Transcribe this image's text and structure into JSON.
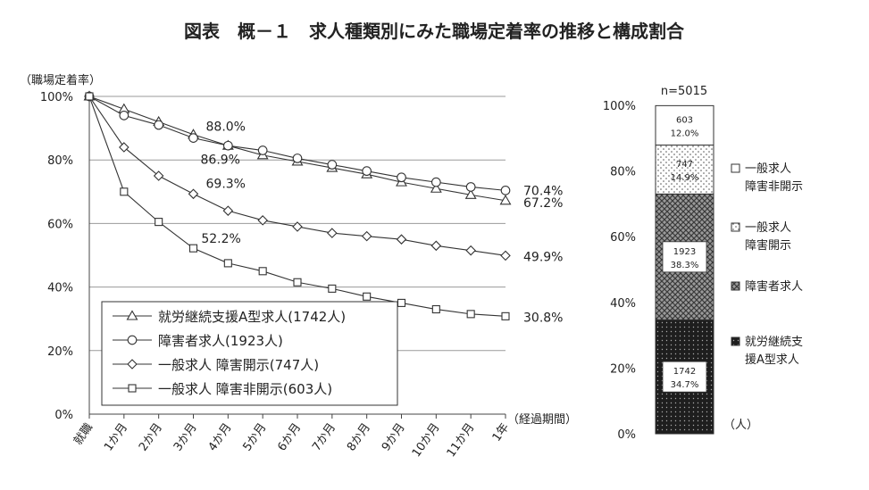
{
  "title": "図表　概－１　求人種類別にみた職場定着率の推移と構成割合",
  "chart_data": [
    {
      "type": "line",
      "ylabel": "（職場定着率）",
      "xlabel": "（経過期間）",
      "ylim": [
        0,
        100
      ],
      "yticks": [
        "0%",
        "20%",
        "40%",
        "60%",
        "80%",
        "100%"
      ],
      "categories": [
        "就職",
        "1か月",
        "2か月",
        "3か月",
        "4か月",
        "5か月",
        "6か月",
        "7か月",
        "8か月",
        "9か月",
        "10か月",
        "11か月",
        "1年"
      ],
      "grid": true,
      "legend_position": "bottom-left",
      "series": [
        {
          "name": "就労継続支援A型求人(1742人)",
          "marker": "triangle",
          "values": [
            100,
            96.0,
            92.0,
            88.0,
            84.5,
            81.5,
            79.5,
            77.5,
            75.5,
            73.0,
            71.0,
            69.0,
            67.2
          ]
        },
        {
          "name": "障害者求人(1923人)",
          "marker": "circle",
          "values": [
            100,
            94.0,
            91.0,
            86.9,
            84.5,
            83.0,
            80.5,
            78.5,
            76.5,
            74.5,
            73.0,
            71.5,
            70.4
          ]
        },
        {
          "name": "一般求人 障害開示(747人)",
          "marker": "diamond",
          "values": [
            100,
            84.0,
            75.0,
            69.3,
            64.0,
            61.0,
            59.0,
            57.0,
            56.0,
            55.0,
            53.0,
            51.5,
            49.9
          ]
        },
        {
          "name": "一般求人 障害非開示(603人)",
          "marker": "square",
          "values": [
            100,
            70.0,
            60.5,
            52.2,
            47.5,
            45.0,
            41.5,
            39.5,
            37.0,
            35.0,
            33.0,
            31.5,
            30.8
          ]
        }
      ],
      "annotations": [
        "88.0%",
        "86.9%",
        "69.3%",
        "52.2%",
        "70.4%",
        "67.2%",
        "49.9%",
        "30.8%"
      ]
    },
    {
      "type": "bar",
      "stacked": true,
      "title": "n=5015",
      "ylim": [
        0,
        100
      ],
      "yticks": [
        "0%",
        "20%",
        "40%",
        "60%",
        "80%",
        "100%"
      ],
      "unit_label": "（人）",
      "segments": [
        {
          "name": "就労継続支援A型求人",
          "count": "1742",
          "percent": "34.7%",
          "value": 34.7,
          "pattern": "dark-dots"
        },
        {
          "name": "障害者求人",
          "count": "1923",
          "percent": "38.3%",
          "value": 38.3,
          "pattern": "crosshatch"
        },
        {
          "name": "一般求人障害開示",
          "count": "747",
          "percent": "14.9%",
          "value": 14.9,
          "pattern": "light-dots"
        },
        {
          "name": "一般求人障害非開示",
          "count": "603",
          "percent": "12.0%",
          "value": 12.0,
          "pattern": "white"
        }
      ],
      "legend": [
        {
          "line1": "一般求人",
          "line2": "障害非開示",
          "pattern": "white"
        },
        {
          "line1": "一般求人",
          "line2": "障害開示",
          "pattern": "light-dots"
        },
        {
          "line1": "障害者求人",
          "line2": "",
          "pattern": "crosshatch"
        },
        {
          "line1": "就労継続支",
          "line2": "援A型求人",
          "pattern": "dark-dots"
        }
      ]
    }
  ]
}
